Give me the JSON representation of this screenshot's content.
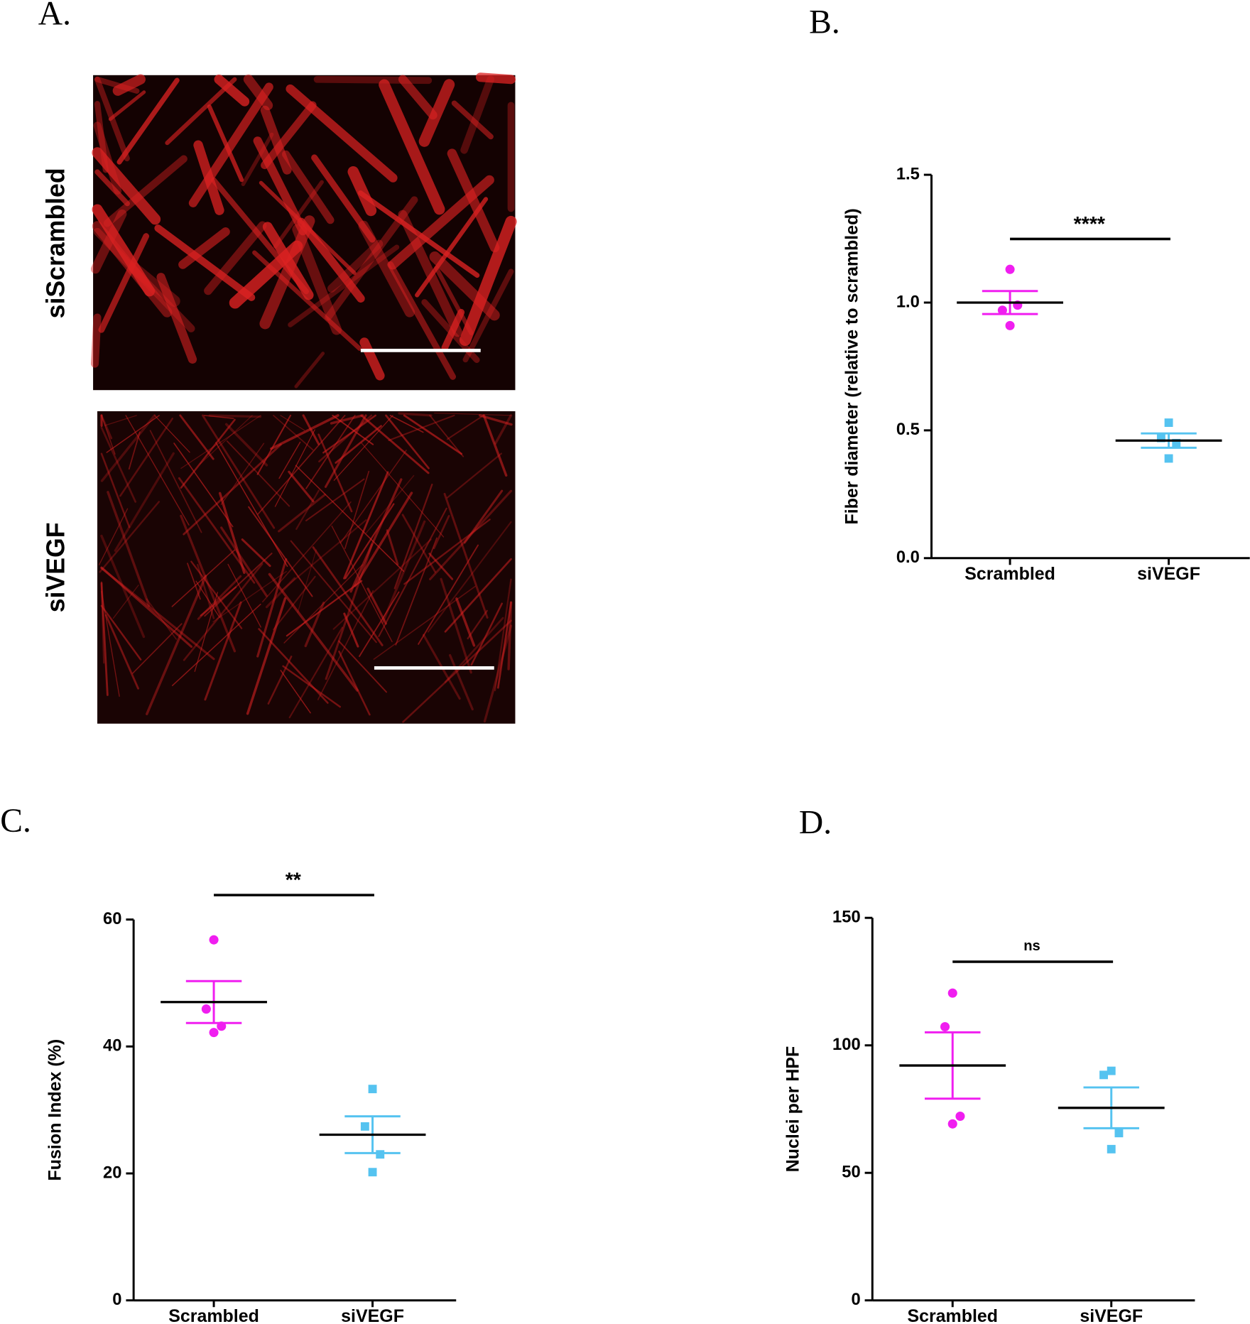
{
  "figure": {
    "panel_labels": [
      "A.",
      "B.",
      "C.",
      "D."
    ],
    "image_labels": [
      "siScrambled",
      "siVEGF"
    ]
  },
  "chart_data": [
    {
      "type": "dotplot",
      "ylabel": "Fiber diameter (relative to scrambled)",
      "categories": [
        "Scrambled",
        "siVEGF"
      ],
      "groups": [
        {
          "color": "#f01ef0",
          "marker": "circle",
          "values": [
            1.13,
            0.97,
            0.99,
            0.91
          ],
          "mean": 1.0,
          "error": 0.045
        },
        {
          "color": "#55c3f0",
          "marker": "square",
          "values": [
            0.53,
            0.47,
            0.45,
            0.39
          ],
          "mean": 0.46,
          "error": 0.028
        }
      ],
      "ylim": [
        0,
        1.5
      ],
      "yticks": [
        {
          "value": 0,
          "label": "0.0"
        },
        {
          "value": 0.5,
          "label": "0.5"
        },
        {
          "value": 1,
          "label": "1.0"
        },
        {
          "value": 1.5,
          "label": "1.5"
        }
      ],
      "annotation": "****"
    },
    {
      "type": "dotplot",
      "ylabel": "Fusion Index (%)",
      "categories": [
        "Scrambled",
        "siVEGF"
      ],
      "groups": [
        {
          "color": "#f01ef0",
          "marker": "circle",
          "values": [
            56.8,
            45.9,
            43.2,
            42.2
          ],
          "mean": 47.0,
          "error": 3.3
        },
        {
          "color": "#55c3f0",
          "marker": "square",
          "values": [
            33.3,
            27.4,
            23.0,
            20.2
          ],
          "mean": 26.1,
          "error": 2.9
        }
      ],
      "ylim": [
        0,
        60
      ],
      "yticks": [
        0,
        20,
        40,
        60
      ],
      "annotation": "**"
    },
    {
      "type": "dotplot",
      "ylabel": "Nuclei per HPF",
      "categories": [
        "Scrambled",
        "siVEGF"
      ],
      "groups": [
        {
          "color": "#f01ef0",
          "marker": "circle",
          "values": [
            120.5,
            107.3,
            72.2,
            69.2
          ],
          "mean": 92.1,
          "error": 13
        },
        {
          "color": "#55c3f0",
          "marker": "square",
          "values": [
            90,
            88.4,
            65.6,
            59.3
          ],
          "mean": 75.5,
          "error": 8
        }
      ],
      "ylim": [
        0,
        150
      ],
      "yticks": [
        0,
        50,
        100,
        150
      ],
      "annotation": "ns"
    }
  ]
}
